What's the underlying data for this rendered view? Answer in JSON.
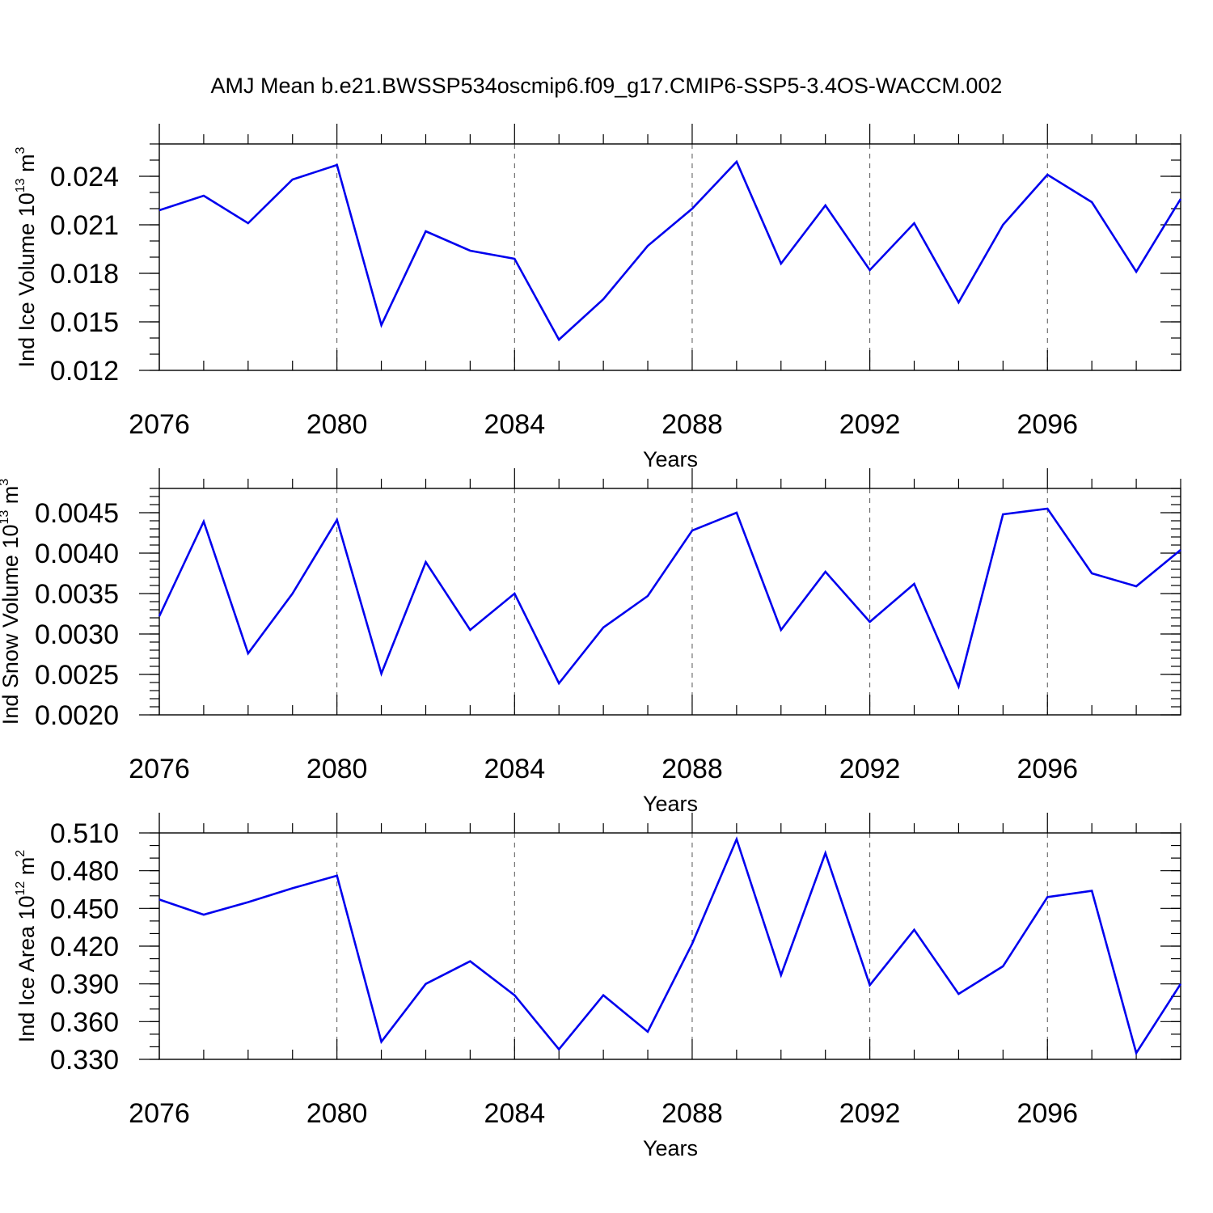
{
  "title": "AMJ Mean b.e21.BWSSP534oscmip6.f09_g17.CMIP6-SSP5-3.4OS-WACCM.002",
  "colors": {
    "line": "#0000ee",
    "axes": "#000000",
    "grid": "#555555"
  },
  "chart_data": [
    {
      "type": "line",
      "xlabel": "Years",
      "ylabel_text": "Ind Ice Volume 10",
      "ylabel_exp": "13",
      "ylabel_unit": " m",
      "ylabel_unit_exp": "3",
      "xlim": [
        2076,
        2099
      ],
      "ylim": [
        0.012,
        0.026
      ],
      "yticks": [
        0.012,
        0.015,
        0.018,
        0.021,
        0.024
      ],
      "ytick_labels": [
        "0.012",
        "0.015",
        "0.018",
        "0.021",
        "0.024"
      ],
      "y_minor_step": 0.001,
      "xticks": [
        2076,
        2080,
        2084,
        2088,
        2092,
        2096
      ],
      "xtick_labels": [
        "2076",
        "2080",
        "2084",
        "2088",
        "2092",
        "2096"
      ],
      "grid_x": [
        2080,
        2084,
        2088,
        2092,
        2096
      ],
      "x": [
        2076,
        2077,
        2078,
        2079,
        2080,
        2081,
        2082,
        2083,
        2084,
        2085,
        2086,
        2087,
        2088,
        2089,
        2090,
        2091,
        2092,
        2093,
        2094,
        2095,
        2096,
        2097,
        2098,
        2099
      ],
      "y": [
        0.0219,
        0.0228,
        0.0211,
        0.0238,
        0.0247,
        0.0148,
        0.0206,
        0.0194,
        0.0189,
        0.0139,
        0.0164,
        0.0197,
        0.022,
        0.0249,
        0.0186,
        0.0222,
        0.0182,
        0.0211,
        0.0162,
        0.021,
        0.0241,
        0.0224,
        0.0181,
        0.0226
      ]
    },
    {
      "type": "line",
      "xlabel": "Years",
      "ylabel_text": "Ind Snow Volume 10",
      "ylabel_exp": "13",
      "ylabel_unit": " m",
      "ylabel_unit_exp": "3",
      "xlim": [
        2076,
        2099
      ],
      "ylim": [
        0.002,
        0.0048
      ],
      "yticks": [
        0.002,
        0.0025,
        0.003,
        0.0035,
        0.004,
        0.0045
      ],
      "ytick_labels": [
        "0.0020",
        "0.0025",
        "0.0030",
        "0.0035",
        "0.0040",
        "0.0045"
      ],
      "y_minor_step": 0.0001,
      "xticks": [
        2076,
        2080,
        2084,
        2088,
        2092,
        2096
      ],
      "xtick_labels": [
        "2076",
        "2080",
        "2084",
        "2088",
        "2092",
        "2096"
      ],
      "grid_x": [
        2080,
        2084,
        2088,
        2092,
        2096
      ],
      "x": [
        2076,
        2077,
        2078,
        2079,
        2080,
        2081,
        2082,
        2083,
        2084,
        2085,
        2086,
        2087,
        2088,
        2089,
        2090,
        2091,
        2092,
        2093,
        2094,
        2095,
        2096,
        2097,
        2098,
        2099
      ],
      "y": [
        0.00322,
        0.00439,
        0.00276,
        0.0035,
        0.00441,
        0.00251,
        0.00389,
        0.00305,
        0.0035,
        0.00239,
        0.00308,
        0.00347,
        0.00428,
        0.0045,
        0.00305,
        0.00377,
        0.00315,
        0.00362,
        0.00235,
        0.00448,
        0.00455,
        0.00375,
        0.00359,
        0.00404
      ]
    },
    {
      "type": "line",
      "xlabel": "Years",
      "ylabel_text": "Ind Ice Area 10",
      "ylabel_exp": "12",
      "ylabel_unit": " m",
      "ylabel_unit_exp": "2",
      "xlim": [
        2076,
        2099
      ],
      "ylim": [
        0.33,
        0.51
      ],
      "yticks": [
        0.33,
        0.36,
        0.39,
        0.42,
        0.45,
        0.48,
        0.51
      ],
      "ytick_labels": [
        "0.330",
        "0.360",
        "0.390",
        "0.420",
        "0.450",
        "0.480",
        "0.510"
      ],
      "y_minor_step": 0.01,
      "xticks": [
        2076,
        2080,
        2084,
        2088,
        2092,
        2096
      ],
      "xtick_labels": [
        "2076",
        "2080",
        "2084",
        "2088",
        "2092",
        "2096"
      ],
      "grid_x": [
        2080,
        2084,
        2088,
        2092,
        2096
      ],
      "x": [
        2076,
        2077,
        2078,
        2079,
        2080,
        2081,
        2082,
        2083,
        2084,
        2085,
        2086,
        2087,
        2088,
        2089,
        2090,
        2091,
        2092,
        2093,
        2094,
        2095,
        2096,
        2097,
        2098,
        2099
      ],
      "y": [
        0.457,
        0.445,
        0.455,
        0.466,
        0.476,
        0.344,
        0.39,
        0.408,
        0.381,
        0.338,
        0.381,
        0.352,
        0.422,
        0.505,
        0.397,
        0.494,
        0.389,
        0.433,
        0.382,
        0.404,
        0.459,
        0.464,
        0.335,
        0.39
      ]
    }
  ]
}
